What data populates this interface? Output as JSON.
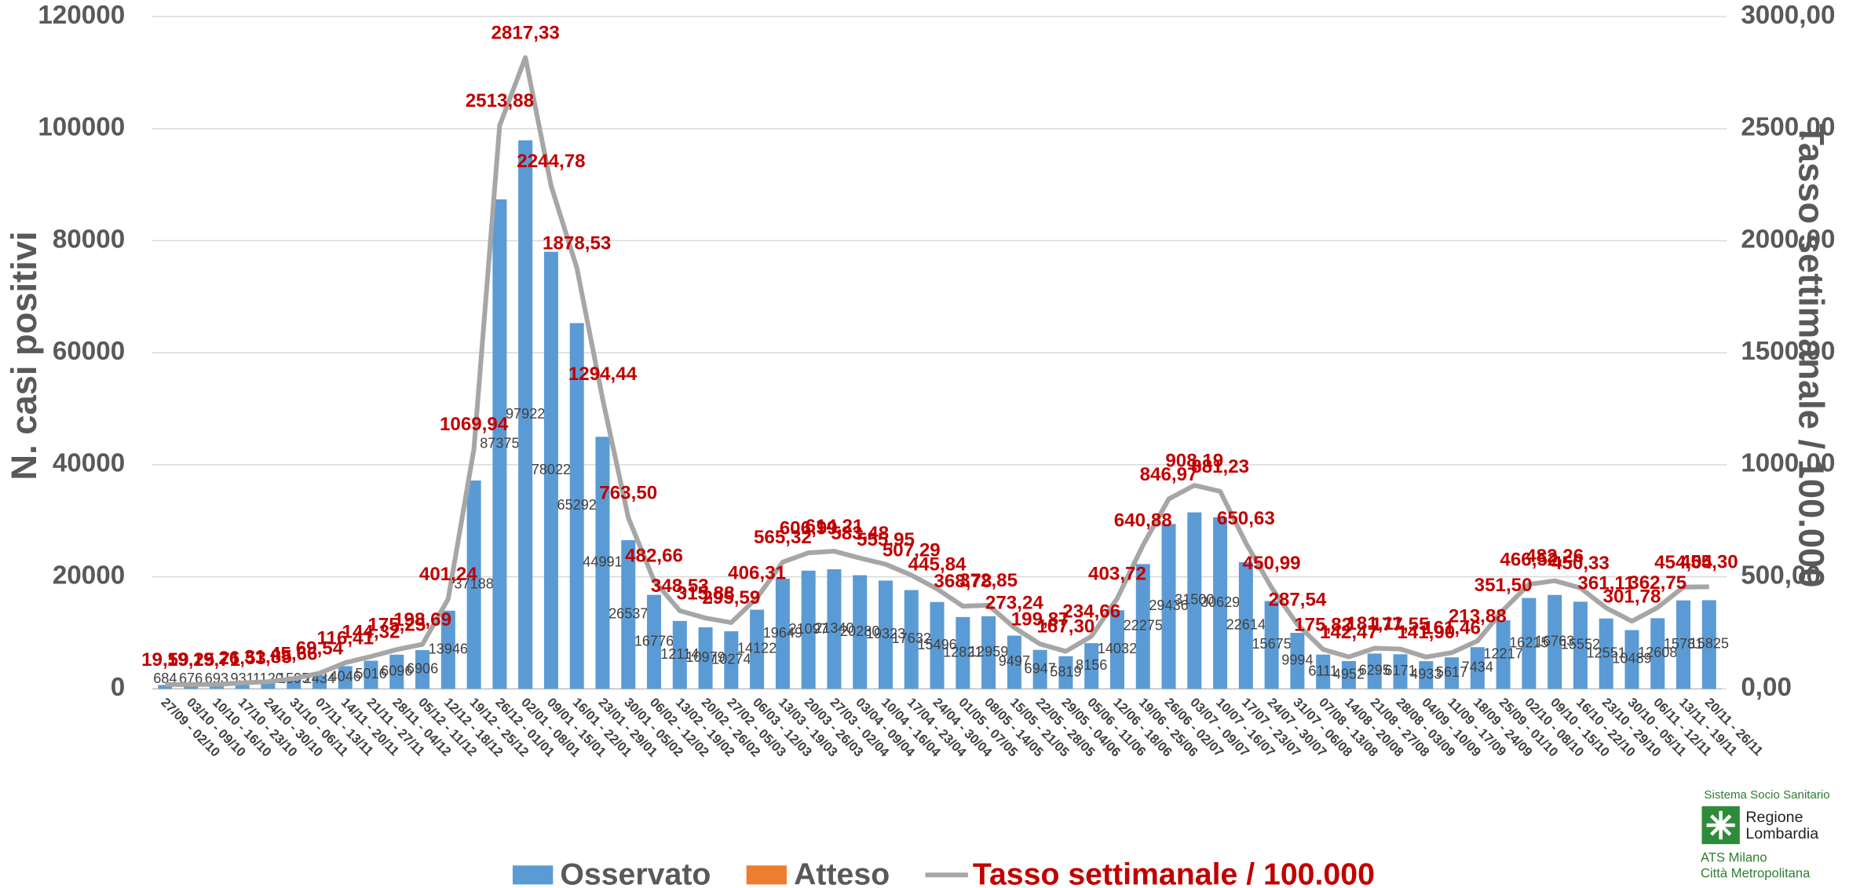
{
  "chart_data": {
    "type": "bar-line",
    "y_label": "N. casi positivi",
    "y2_label": "Tasso settimanale / 100.000",
    "categories": [
      "27/09 - 02/10",
      "03/10 - 09/10",
      "10/10 - 16/10",
      "17/10 - 23/10",
      "24/10 - 30/10",
      "31/10 - 06/11",
      "07/11 - 13/11",
      "14/11 - 20/11",
      "21/11 - 27/11",
      "28/11 - 04/12",
      "05/12 - 11/12",
      "12/12 - 18/12",
      "19/12 - 25/12",
      "26/12 - 01/01",
      "02/01 - 08/01",
      "09/01 - 15/01",
      "16/01 - 22/01",
      "23/01 - 29/01",
      "30/01 - 05/02",
      "06/02 - 12/02",
      "13/02 - 19/02",
      "20/02 - 26/02",
      "27/02 - 05/03",
      "06/03 - 12/03",
      "13/03 - 19/03",
      "20/03 - 26/03",
      "27/03 - 02/04",
      "03/04 - 09/04",
      "10/04 - 16/04",
      "17/04 - 23/04",
      "24/04 - 30/04",
      "01/05 - 07/05",
      "08/05 - 14/05",
      "15/05 - 21/05",
      "22/05 - 28/05",
      "29/05 - 04/06",
      "05/06 - 11/06",
      "12/06 - 18/06",
      "19/06 - 25/06",
      "26/06 - 02/07",
      "03/07 - 09/07",
      "10/07 - 16/07",
      "17/07 - 23/07",
      "24/07 - 30/07",
      "31/07 - 06/08",
      "07/08 - 13/08",
      "14/08 - 20/08",
      "21/08 - 27/08",
      "28/08 - 03/09",
      "04/09 - 10/09",
      "11/09 - 17/09",
      "18/09 - 24/09",
      "25/09 - 01/10",
      "02/10 - 08/10",
      "09/10 - 15/10",
      "16/10 - 22/10",
      "23/10 - 29/10",
      "30/10 - 05/11",
      "06/11 - 12/11",
      "13/11 - 19/11",
      "20/11 - 26/11"
    ],
    "series": [
      {
        "name": "Osservato",
        "type": "bar",
        "color": "#5b9bd5",
        "values": [
          684,
          676,
          693,
          931,
          1120,
          1595,
          2434,
          4046,
          5016,
          6096,
          6906,
          13946,
          37188,
          87375,
          97922,
          78022,
          65292,
          44991,
          26537,
          16776,
          12114,
          10979,
          10274,
          14122,
          19649,
          21097,
          21340,
          20280,
          19323,
          17632,
          15496,
          12821,
          12959,
          9497,
          6947,
          5819,
          8156,
          14032,
          22275,
          29436,
          31500,
          30629,
          22614,
          15675,
          9994,
          6111,
          4952,
          6295,
          6171,
          4933,
          5617,
          7434,
          12217,
          16215,
          16763,
          15552,
          12551,
          10489,
          12608,
          15781,
          15825
        ]
      },
      {
        "name": "Atteso",
        "type": "bar",
        "color": "#ed7d31",
        "values": [
          null,
          null,
          null,
          null,
          null,
          null,
          null,
          null,
          null,
          null,
          null,
          null,
          null,
          null,
          null,
          null,
          null,
          null,
          null,
          null,
          null,
          null,
          null,
          null,
          null,
          null,
          null,
          null,
          null,
          null,
          null,
          null,
          null,
          null,
          null,
          null,
          null,
          null,
          null,
          null,
          null,
          null,
          null,
          null,
          null,
          null,
          null,
          null,
          null,
          null,
          null,
          null,
          null,
          null,
          null,
          null,
          null,
          null,
          null,
          null,
          null
        ]
      },
      {
        "name": "Tasso settimanale / 100.000",
        "type": "line",
        "axis": "y2",
        "color": "#a6a6a6",
        "label_color": "#c00000",
        "values": [
          19.59,
          19.25,
          19.71,
          26.53,
          31.85,
          45.66,
          69.54,
          116.41,
          144.32,
          175.25,
          198.69,
          401.24,
          1069.94,
          2513.88,
          2817.33,
          2244.78,
          1878.53,
          1294.44,
          763.5,
          482.66,
          348.53,
          315.88,
          295.59,
          406.31,
          565.32,
          606.99,
          614.21,
          583.48,
          555.95,
          507.29,
          445.84,
          368.78,
          372.85,
          273.24,
          199.87,
          167.3,
          234.66,
          403.72,
          640.88,
          846.97,
          908.19,
          881.23,
          650.63,
          450.99,
          287.54,
          175.82,
          142.47,
          181.11,
          177.55,
          141.9,
          161.46,
          213.88,
          351.5,
          466.52,
          482.26,
          450.33,
          361.11,
          301.78,
          362.75,
          454.04,
          455.3
        ],
        "value_labels": [
          "19,59",
          "19,25",
          "19,71",
          "26,53",
          "31,85",
          "45,66",
          "69,54",
          "116,41",
          "144,32",
          "175,25",
          "198,69",
          "401,24",
          "1069,94",
          "2513,88",
          "2817,33",
          "2244,78",
          "1878,53",
          "1294,44",
          "763,50",
          "482,66",
          "348,53",
          "315,88",
          "295,59",
          "406,31",
          "565,32",
          "606,99",
          "614,21",
          "583,48",
          "555,95",
          "507,29",
          "445,84",
          "368,78",
          "372,85",
          "273,24",
          "199,87",
          "167,30",
          "234,66",
          "403,72",
          "640,88",
          "846,97",
          "908,19",
          "881,23",
          "650,63",
          "450,99",
          "287,54",
          "175,82",
          "142,47",
          "181,11",
          "177,55",
          "141,90",
          "161,46",
          "213,88",
          "351,50",
          "466,52",
          "482,26",
          "450,33",
          "361,11",
          "301,78",
          "362,75",
          "454,04",
          "455,30"
        ]
      }
    ],
    "ylim": [
      0,
      120000
    ],
    "yticks": [
      0,
      20000,
      40000,
      60000,
      80000,
      100000,
      120000
    ],
    "y2lim": [
      0,
      3000
    ],
    "y2ticks": [
      {
        "value": 0,
        "label": "0,00"
      },
      {
        "value": 500,
        "label": "500,00"
      },
      {
        "value": 1000,
        "label": "1000,00"
      },
      {
        "value": 1500,
        "label": "1500,00"
      },
      {
        "value": 2000,
        "label": "2000,00"
      },
      {
        "value": 2500,
        "label": "2500,00"
      },
      {
        "value": 3000,
        "label": "3000,00"
      }
    ],
    "grid": true,
    "legend": "bottom"
  },
  "logo": {
    "top": "Sistema Socio Sanitario",
    "name": [
      "Regione",
      "Lombardia"
    ],
    "sub": [
      "ATS Milano",
      "Città Metropolitana"
    ]
  }
}
